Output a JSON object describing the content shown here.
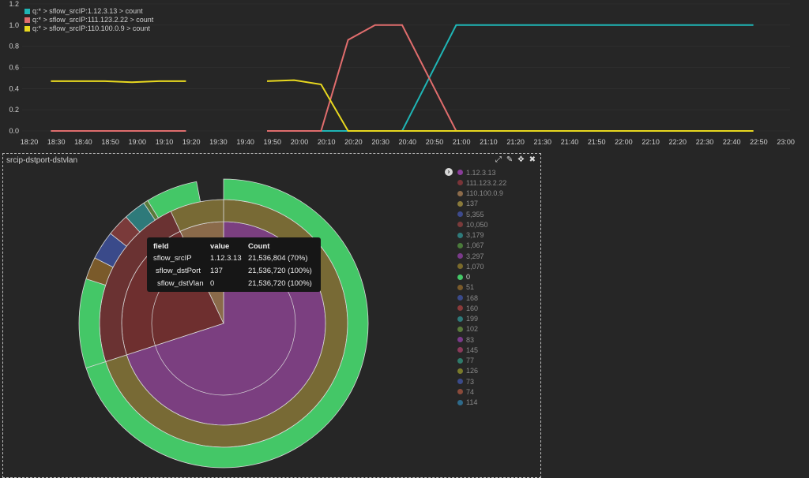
{
  "legend_items": [
    {
      "label": "q:* > sflow_srcIP:1.12.3.13 > count",
      "color": "#1fb5b5"
    },
    {
      "label": "q:* > sflow_srcIP:111.123.2.22 > count",
      "color": "#e06d6d"
    },
    {
      "label": "q:* > sflow_srcIP:110.100.0.9 > count",
      "color": "#e8d81f"
    }
  ],
  "panel": {
    "title": "srcip-dstport-dstvlan"
  },
  "tooltip": {
    "headers": [
      "field",
      "value",
      "Count"
    ],
    "rows": [
      [
        "sflow_srcIP",
        "1.12.3.13",
        "21,536,804 (70%)"
      ],
      [
        "sflow_dstPort",
        "137",
        "21,536,720 (100%)"
      ],
      [
        "sflow_dstVlan",
        "0",
        "21,536,720 (100%)"
      ]
    ]
  },
  "pie_legend": [
    {
      "label": "1.12.3.13",
      "color": "#8a3d9a"
    },
    {
      "label": "111.123.2.22",
      "color": "#7a3438"
    },
    {
      "label": "110.100.0.9",
      "color": "#8c6b4a"
    },
    {
      "label": "137",
      "color": "#8a7a3a"
    },
    {
      "label": "5,355",
      "color": "#3d4a8c"
    },
    {
      "label": "10,050",
      "color": "#7a3a3a"
    },
    {
      "label": "3,179",
      "color": "#2e7a7a"
    },
    {
      "label": "1,067",
      "color": "#4a7a3a"
    },
    {
      "label": "3,297",
      "color": "#7a3a8a"
    },
    {
      "label": "1,070",
      "color": "#7a6a2a"
    },
    {
      "label": "0",
      "color": "#44c767"
    },
    {
      "label": "51",
      "color": "#7a5a2a"
    },
    {
      "label": "168",
      "color": "#3a4a8a"
    },
    {
      "label": "160",
      "color": "#8a3a3a"
    },
    {
      "label": "199",
      "color": "#2e7a7a"
    },
    {
      "label": "102",
      "color": "#5a7a3a"
    },
    {
      "label": "83",
      "color": "#7a3a8a"
    },
    {
      "label": "145",
      "color": "#8a3a5a"
    },
    {
      "label": "77",
      "color": "#2e7a6a"
    },
    {
      "label": "126",
      "color": "#7a7a2a"
    },
    {
      "label": "73",
      "color": "#3a4a8a"
    },
    {
      "label": "74",
      "color": "#8a4a3a"
    },
    {
      "label": "114",
      "color": "#2e6a8a"
    }
  ],
  "chart_data": [
    {
      "type": "line",
      "ylim": [
        0,
        1.2
      ],
      "yticks": [
        "0.0",
        "0.2",
        "0.4",
        "0.6",
        "0.8",
        "1.0",
        "1.2"
      ],
      "xticks": [
        "18:20",
        "18:30",
        "18:40",
        "18:50",
        "19:00",
        "19:10",
        "19:20",
        "19:30",
        "19:40",
        "19:50",
        "20:00",
        "20:10",
        "20:20",
        "20:30",
        "20:40",
        "20:50",
        "21:00",
        "21:10",
        "21:20",
        "21:30",
        "21:40",
        "21:50",
        "22:00",
        "22:10",
        "22:20",
        "22:30",
        "22:40",
        "22:50",
        "23:00"
      ],
      "series": [
        {
          "name": "q:* > sflow_srcIP:1.12.3.13 > count",
          "color": "#1fb5b5",
          "segments": [
            [
              [
                "18:28",
                0
              ],
              [
                "19:18",
                0
              ]
            ],
            [
              [
                "19:48",
                0
              ],
              [
                "20:38",
                0
              ],
              [
                "20:58",
                1.0
              ],
              [
                "22:48",
                1.0
              ]
            ]
          ]
        },
        {
          "name": "q:* > sflow_srcIP:111.123.2.22 > count",
          "color": "#e06d6d",
          "segments": [
            [
              [
                "18:28",
                0
              ],
              [
                "19:18",
                0
              ]
            ],
            [
              [
                "19:48",
                0
              ],
              [
                "20:08",
                0
              ],
              [
                "20:18",
                0.86
              ],
              [
                "20:28",
                1.0
              ],
              [
                "20:38",
                1.0
              ],
              [
                "20:58",
                0
              ],
              [
                "22:48",
                0
              ]
            ]
          ]
        },
        {
          "name": "q:* > sflow_srcIP:110.100.0.9 > count",
          "color": "#e8d81f",
          "segments": [
            [
              [
                "18:28",
                0.47
              ],
              [
                "18:38",
                0.47
              ],
              [
                "18:48",
                0.47
              ],
              [
                "18:58",
                0.46
              ],
              [
                "19:08",
                0.47
              ],
              [
                "19:18",
                0.47
              ]
            ],
            [
              [
                "19:48",
                0.47
              ],
              [
                "19:58",
                0.48
              ],
              [
                "20:08",
                0.44
              ],
              [
                "20:18",
                0
              ],
              [
                "22:48",
                0
              ]
            ]
          ]
        }
      ]
    },
    {
      "type": "sunburst",
      "levels": [
        {
          "name": "sflow_srcIP",
          "slices": [
            {
              "label": "1.12.3.13",
              "value": 0.7,
              "color": "#7b3f80"
            },
            {
              "label": "111.123.2.22",
              "value": 0.23,
              "color": "#6e2f2f"
            },
            {
              "label": "110.100.0.9",
              "value": 0.07,
              "color": "#8a6a4a"
            }
          ]
        },
        {
          "name": "sflow_dstPort",
          "slices": [
            {
              "label": "137",
              "value": 0.7,
              "color": "#786a35"
            },
            {
              "label": "137",
              "value": 0.23,
              "color": "#6a3232"
            },
            {
              "label": "137",
              "value": 0.07,
              "color": "#786a35"
            }
          ]
        },
        {
          "name": "sflow_dstVlan",
          "slices": [
            {
              "label": "0",
              "value": 0.7,
              "color": "#44c767"
            },
            {
              "label": "0",
              "value": 0.1,
              "color": "#44c767"
            },
            {
              "label": "51",
              "value": 0.025,
              "color": "#7a5a2a"
            },
            {
              "label": "168",
              "value": 0.032,
              "color": "#3a4a8a"
            },
            {
              "label": "160",
              "value": 0.025,
              "color": "#7a3a3a"
            },
            {
              "label": "199",
              "value": 0.025,
              "color": "#2e7a7a"
            },
            {
              "label": "102",
              "value": 0.005,
              "color": "#5a7a3a"
            },
            {
              "label": "0",
              "value": 0.058,
              "color": "#44c767"
            }
          ]
        }
      ]
    }
  ]
}
